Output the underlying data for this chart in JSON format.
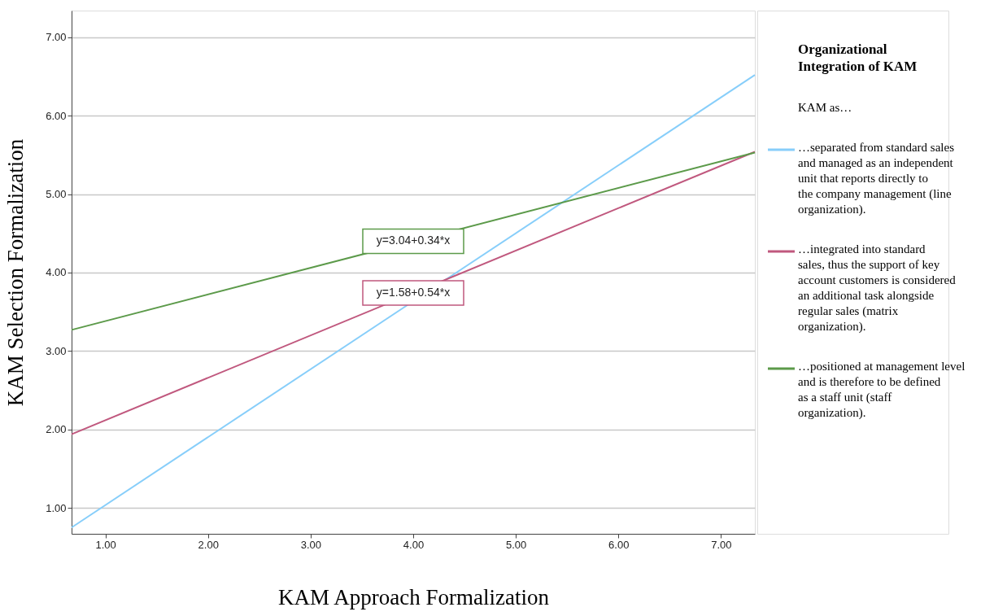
{
  "chart_data": {
    "type": "line",
    "xlabel": "KAM Approach Formalization",
    "ylabel": "KAM Selection Formalization",
    "legend_title": "Organizational Integration of KAM",
    "xlim": [
      0.67,
      7.33
    ],
    "ylim": [
      0.67,
      7.34
    ],
    "xticks": [
      {
        "value": 1,
        "label": "1.00"
      },
      {
        "value": 2,
        "label": "2.00"
      },
      {
        "value": 3,
        "label": "3.00"
      },
      {
        "value": 4,
        "label": "4.00"
      },
      {
        "value": 5,
        "label": "5.00"
      },
      {
        "value": 6,
        "label": "6.00"
      },
      {
        "value": 7,
        "label": "7.00"
      }
    ],
    "yticks": [
      {
        "value": 1,
        "label": "1.00"
      },
      {
        "value": 2,
        "label": "2.00"
      },
      {
        "value": 3,
        "label": "3.00"
      },
      {
        "value": 4,
        "label": "4.00"
      },
      {
        "value": 5,
        "label": "5.00"
      },
      {
        "value": 6,
        "label": "6.00"
      },
      {
        "value": 7,
        "label": "7.00"
      }
    ],
    "x": [
      0.67,
      7.33
    ],
    "series": [
      {
        "name": "…separated from standard sales and managed as an independent unit that reports directly to the company management (line organization).",
        "color": "#87cefa",
        "values": [
          0.75,
          6.52
        ]
      },
      {
        "name": "…integrated into standard sales, thus the support of key account customers is considered an additional task alongside regular sales (matrix organization).",
        "color": "#c0587e",
        "values": [
          1.94,
          5.54
        ]
      },
      {
        "name": "…positioned at management level and is therefore to be defined as a staff unit (staff organization).",
        "color": "#5c9a4a",
        "values": [
          3.27,
          5.53
        ]
      }
    ],
    "annotations": [
      {
        "text": "y=3.04+0.34*x",
        "x": 4.0,
        "y": 4.4
      },
      {
        "text": "y=1.58+0.54*x",
        "x": 4.0,
        "y": 3.74
      },
      "KAM as…"
    ],
    "grid": "y",
    "legend": "right",
    "marker": "none",
    "line_style": "solid"
  }
}
